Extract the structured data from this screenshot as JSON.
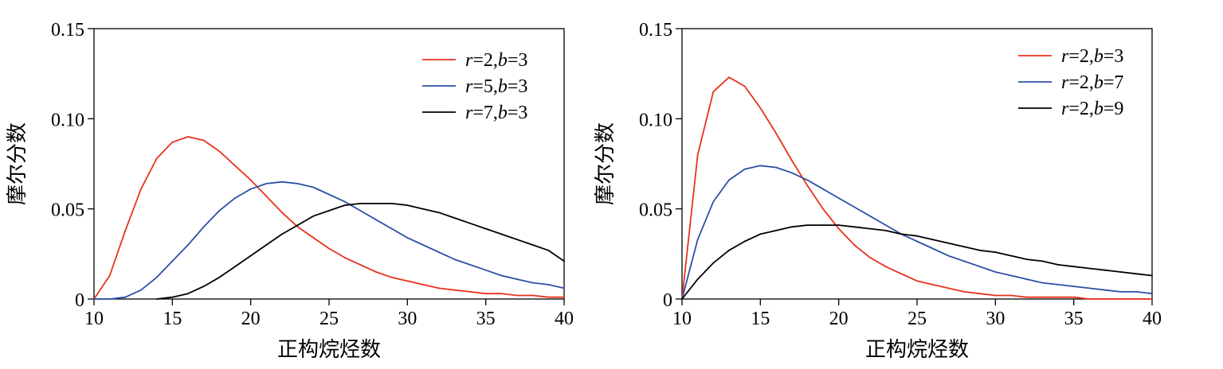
{
  "chart_data": [
    {
      "type": "line",
      "xlabel": "正构烷烃数",
      "ylabel": "摩尔分数",
      "xlim": [
        10,
        40
      ],
      "ylim": [
        0,
        0.15
      ],
      "xticks": [
        10,
        15,
        20,
        25,
        30,
        35,
        40
      ],
      "yticks": [
        0,
        0.05,
        0.1,
        0.15
      ],
      "ytick_labels": [
        "0",
        "0.05",
        "0.10",
        "0.15"
      ],
      "grid": false,
      "legend_position": "top-right",
      "series": [
        {
          "name": "r=2,b=3",
          "color": "#e8321e",
          "x": [
            10,
            11,
            12,
            13,
            14,
            15,
            16,
            17,
            18,
            19,
            20,
            21,
            22,
            23,
            24,
            25,
            26,
            27,
            28,
            29,
            30,
            31,
            32,
            33,
            34,
            35,
            36,
            37,
            38,
            39,
            40
          ],
          "y": [
            0,
            0.013,
            0.038,
            0.061,
            0.078,
            0.087,
            0.09,
            0.088,
            0.082,
            0.074,
            0.066,
            0.057,
            0.048,
            0.04,
            0.034,
            0.028,
            0.023,
            0.019,
            0.015,
            0.012,
            0.01,
            0.008,
            0.006,
            0.005,
            0.004,
            0.003,
            0.003,
            0.002,
            0.002,
            0.001,
            0.001
          ]
        },
        {
          "name": "r=5,b=3",
          "color": "#2f4fa6",
          "x": [
            10,
            11,
            12,
            13,
            14,
            15,
            16,
            17,
            18,
            19,
            20,
            21,
            22,
            23,
            24,
            25,
            26,
            27,
            28,
            29,
            30,
            31,
            32,
            33,
            34,
            35,
            36,
            37,
            38,
            39,
            40
          ],
          "y": [
            0,
            0,
            0.001,
            0.005,
            0.012,
            0.021,
            0.03,
            0.04,
            0.049,
            0.056,
            0.061,
            0.064,
            0.065,
            0.064,
            0.062,
            0.058,
            0.054,
            0.049,
            0.044,
            0.039,
            0.034,
            0.03,
            0.026,
            0.022,
            0.019,
            0.016,
            0.013,
            0.011,
            0.009,
            0.008,
            0.006
          ]
        },
        {
          "name": "r=7,b=3",
          "color": "#000000",
          "x": [
            14,
            15,
            16,
            17,
            18,
            19,
            20,
            21,
            22,
            23,
            24,
            25,
            26,
            27,
            28,
            29,
            30,
            31,
            32,
            33,
            34,
            35,
            36,
            37,
            38,
            39,
            40
          ],
          "y": [
            0,
            0.001,
            0.003,
            0.007,
            0.012,
            0.018,
            0.024,
            0.03,
            0.036,
            0.041,
            0.046,
            0.049,
            0.052,
            0.053,
            0.053,
            0.053,
            0.052,
            0.05,
            0.048,
            0.045,
            0.042,
            0.039,
            0.036,
            0.033,
            0.03,
            0.027,
            0.021
          ]
        }
      ]
    },
    {
      "type": "line",
      "xlabel": "正构烷烃数",
      "ylabel": "摩尔分数",
      "xlim": [
        10,
        40
      ],
      "ylim": [
        0,
        0.15
      ],
      "xticks": [
        10,
        15,
        20,
        25,
        30,
        35,
        40
      ],
      "yticks": [
        0,
        0.05,
        0.1,
        0.15
      ],
      "ytick_labels": [
        "0",
        "0.05",
        "0.10",
        "0.15"
      ],
      "grid": false,
      "legend_position": "top-right",
      "series": [
        {
          "name": "r=2,b=3",
          "color": "#e8321e",
          "x": [
            10,
            11,
            12,
            13,
            14,
            15,
            16,
            17,
            18,
            19,
            20,
            21,
            22,
            23,
            24,
            25,
            26,
            27,
            28,
            29,
            30,
            31,
            32,
            33,
            34,
            35,
            36,
            37,
            38,
            39,
            40
          ],
          "y": [
            0,
            0.08,
            0.115,
            0.123,
            0.118,
            0.106,
            0.092,
            0.077,
            0.063,
            0.05,
            0.039,
            0.03,
            0.023,
            0.018,
            0.014,
            0.01,
            0.008,
            0.006,
            0.004,
            0.003,
            0.002,
            0.002,
            0.001,
            0.001,
            0.001,
            0.001,
            0,
            0,
            0,
            0,
            0
          ]
        },
        {
          "name": "r=2,b=7",
          "color": "#2f4fa6",
          "x": [
            10,
            11,
            12,
            13,
            14,
            15,
            16,
            17,
            18,
            19,
            20,
            21,
            22,
            23,
            24,
            25,
            26,
            27,
            28,
            29,
            30,
            31,
            32,
            33,
            34,
            35,
            36,
            37,
            38,
            39,
            40
          ],
          "y": [
            0,
            0.033,
            0.054,
            0.066,
            0.072,
            0.074,
            0.073,
            0.07,
            0.066,
            0.061,
            0.056,
            0.051,
            0.046,
            0.041,
            0.036,
            0.032,
            0.028,
            0.024,
            0.021,
            0.018,
            0.015,
            0.013,
            0.011,
            0.009,
            0.008,
            0.007,
            0.006,
            0.005,
            0.004,
            0.004,
            0.003
          ]
        },
        {
          "name": "r=2,b=9",
          "color": "#000000",
          "x": [
            10,
            11,
            12,
            13,
            14,
            15,
            16,
            17,
            18,
            19,
            20,
            21,
            22,
            23,
            24,
            25,
            26,
            27,
            28,
            29,
            30,
            31,
            32,
            33,
            34,
            35,
            36,
            37,
            38,
            39,
            40
          ],
          "y": [
            0,
            0.011,
            0.02,
            0.027,
            0.032,
            0.036,
            0.038,
            0.04,
            0.041,
            0.041,
            0.041,
            0.04,
            0.039,
            0.038,
            0.036,
            0.035,
            0.033,
            0.031,
            0.029,
            0.027,
            0.026,
            0.024,
            0.022,
            0.021,
            0.019,
            0.018,
            0.017,
            0.016,
            0.015,
            0.014,
            0.013
          ]
        }
      ]
    }
  ]
}
